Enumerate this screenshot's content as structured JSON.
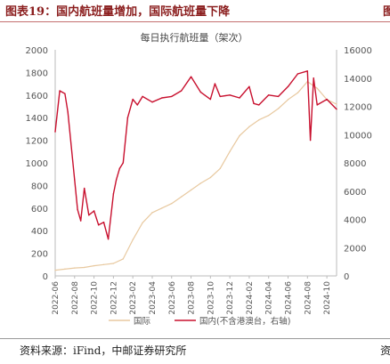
{
  "figure": {
    "title": "图表19：国内航班量增加，国际航班量下降",
    "next_title_fragment": "图",
    "source": "资料来源：iFind，中邮证券研究所",
    "next_source_fragment": "资"
  },
  "chart_data": {
    "type": "line",
    "title": "每日执行航班量（架次）",
    "x_ticks": [
      "2022-06",
      "2022-08",
      "2022-10",
      "2022-12",
      "2023-02",
      "2023-04",
      "2023-06",
      "2023-08",
      "2023-10",
      "2023-12",
      "2024-02",
      "2024-04",
      "2024-06",
      "2024-08",
      "2024-10"
    ],
    "y_left_ticks": [
      "0",
      "200",
      "400",
      "600",
      "800",
      "1000",
      "1200",
      "1400",
      "1600",
      "1800",
      "2000"
    ],
    "y_right_ticks": [
      "0",
      "2000",
      "4000",
      "6000",
      "8000",
      "10000",
      "12000",
      "14000",
      "16000"
    ],
    "ylim_left": [
      0,
      2000
    ],
    "ylim_right": [
      0,
      16000
    ],
    "grid": false,
    "legend_position": "bottom",
    "colors": {
      "international": "#e8c9a0",
      "domestic": "#c8102e"
    },
    "series": [
      {
        "name": "国际",
        "axis": "left",
        "x": [
          "2022-06",
          "2022-07",
          "2022-08",
          "2022-09",
          "2022-10",
          "2022-11",
          "2022-12",
          "2023-01",
          "2023-02",
          "2023-03",
          "2023-04",
          "2023-05",
          "2023-06",
          "2023-07",
          "2023-08",
          "2023-09",
          "2023-10",
          "2023-11",
          "2023-12",
          "2024-01",
          "2024-02",
          "2024-03",
          "2024-04",
          "2024-05",
          "2024-06",
          "2024-07",
          "2024-08",
          "2024-09",
          "2024-10",
          "2024-11"
        ],
        "values": [
          50,
          60,
          70,
          75,
          90,
          100,
          110,
          150,
          320,
          470,
          560,
          600,
          640,
          700,
          760,
          820,
          870,
          950,
          1100,
          1240,
          1320,
          1380,
          1420,
          1480,
          1560,
          1620,
          1720,
          1660,
          1560,
          1520
        ]
      },
      {
        "name": "国内(不含港澳台，右轴)",
        "axis": "right",
        "x": [
          "2022-06",
          "2022-06-15",
          "2022-07",
          "2022-07-10",
          "2022-08",
          "2022-08-10",
          "2022-08-20",
          "2022-09",
          "2022-09-15",
          "2022-10",
          "2022-10-15",
          "2022-11",
          "2022-11-15",
          "2022-12",
          "2022-12-10",
          "2022-12-20",
          "2023-01",
          "2023-01-15",
          "2023-02",
          "2023-02-15",
          "2023-03",
          "2023-04",
          "2023-05",
          "2023-06",
          "2023-07",
          "2023-08",
          "2023-09",
          "2023-10",
          "2023-10-15",
          "2023-11",
          "2023-12",
          "2024-01",
          "2024-02",
          "2024-02-15",
          "2024-03",
          "2024-04",
          "2024-05",
          "2024-06",
          "2024-07",
          "2024-08",
          "2024-08-10",
          "2024-08-20",
          "2024-09",
          "2024-10",
          "2024-11"
        ],
        "values": [
          10200,
          13100,
          12900,
          11600,
          6800,
          4700,
          3900,
          6200,
          4300,
          4600,
          3600,
          3800,
          2600,
          5800,
          6800,
          7600,
          8000,
          11200,
          12500,
          12100,
          12700,
          12300,
          12600,
          12700,
          13100,
          14100,
          13000,
          12500,
          13600,
          12700,
          12800,
          12600,
          13400,
          12200,
          12100,
          12800,
          12700,
          13400,
          14300,
          14500,
          9600,
          14000,
          12100,
          12500,
          11800
        ]
      }
    ]
  }
}
